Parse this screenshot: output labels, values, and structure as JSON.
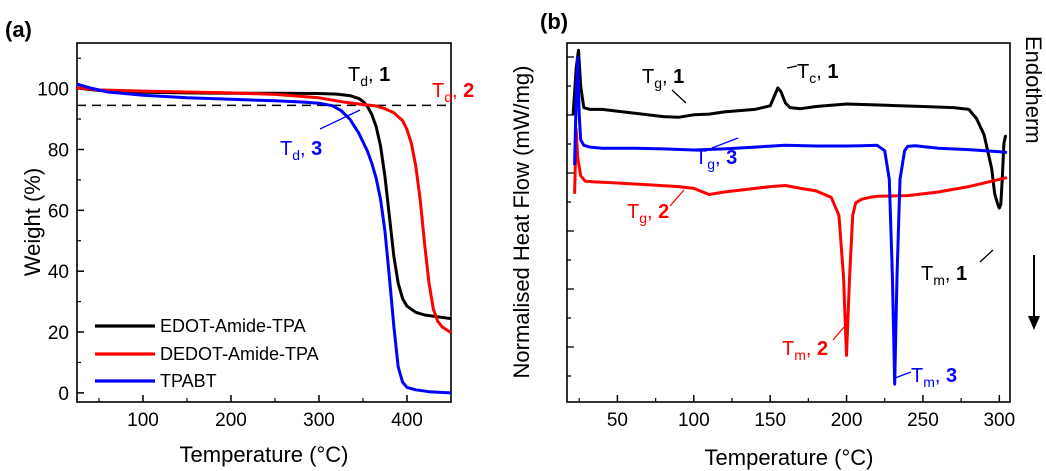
{
  "panels": [
    {
      "panel_label": "(a)",
      "chart_data": {
        "type": "line",
        "xlabel": "Temperature (°C)",
        "ylabel": "Weight (%)",
        "xlim": [
          25,
          450
        ],
        "ylim": [
          -3,
          115
        ],
        "xticks": [
          100,
          200,
          300,
          400
        ],
        "yticks": [
          0,
          20,
          40,
          60,
          80,
          100
        ],
        "hline": 94.5,
        "legend_position": "bottom-left",
        "series": [
          {
            "name": "EDOT-Amide-TPA",
            "color": "#000000",
            "x": [
              25,
              50,
              100,
              150,
              200,
              250,
              300,
              320,
              335,
              345,
              350,
              355,
              360,
              365,
              370,
              375,
              380,
              385,
              390,
              395,
              400,
              410,
              420,
              435,
              450
            ],
            "y": [
              100.2,
              99.4,
              98.8,
              98.6,
              98.5,
              98.5,
              98.4,
              98.2,
              97.7,
              96.8,
              95.8,
              94.2,
              91.5,
              87.5,
              81,
              71,
              58,
              45,
              36,
              31,
              28.5,
              26.5,
              25.6,
              25,
              24.4
            ]
          },
          {
            "name": "DEDOT-Amide-TPA",
            "color": "#ff0000",
            "x": [
              25,
              50,
              100,
              150,
              200,
              250,
              300,
              330,
              350,
              365,
              375,
              385,
              395,
              400,
              405,
              410,
              415,
              420,
              425,
              430,
              435,
              440,
              445,
              450
            ],
            "y": [
              100.3,
              99.6,
              99.2,
              98.9,
              98.6,
              98.1,
              97,
              95.5,
              94.8,
              94.3,
              93.4,
              92.1,
              89.5,
              86.5,
              82,
              74.5,
              63.5,
              49,
              36,
              27.5,
              23.5,
              21.7,
              20.7,
              19.8
            ]
          },
          {
            "name": "TPABT",
            "color": "#0000ff",
            "x": [
              25,
              40,
              60,
              100,
              150,
              200,
              250,
              280,
              300,
              315,
              325,
              335,
              345,
              355,
              360,
              365,
              370,
              375,
              380,
              385,
              390,
              395,
              400,
              410,
              425,
              450
            ],
            "y": [
              101.5,
              100.2,
              98.9,
              97.8,
              97,
              96.5,
              96,
              95.6,
              95.2,
              94.4,
              92.8,
              90,
              85.5,
              79.5,
              75.5,
              70.5,
              63.5,
              53,
              38,
              22,
              8.5,
              3.5,
              1.8,
              1,
              0.4,
              0
            ]
          }
        ],
        "annotations": [
          {
            "sym": "T",
            "sub": "d",
            "num": "1",
            "color": "#000000"
          },
          {
            "sym": "T",
            "sub": "d",
            "num": "2",
            "color": "#ff0000"
          },
          {
            "sym": "T",
            "sub": "d",
            "num": "3",
            "color": "#0000ff"
          }
        ]
      }
    },
    {
      "panel_label": "(b)",
      "chart_data": {
        "type": "line",
        "xlabel": "Temperature (°C)",
        "ylabel": "Normalised Heat Flow (mW/mg)",
        "side_label": "Endotherm",
        "xlim": [
          17,
          307
        ],
        "ylim": [
          0,
          100
        ],
        "xticks": [
          50,
          100,
          150,
          200,
          250,
          300
        ],
        "yticks": [],
        "series": [
          {
            "name": "1",
            "color": "#000000",
            "x": [
              21,
              23,
              24.5,
              26,
              28,
              32,
              40,
              60,
              80,
              90,
              100,
              110,
              120,
              140,
              150,
              153,
              155,
              157,
              160,
              163,
              170,
              180,
              200,
              230,
              250,
              270,
              280,
              285,
              290,
              295,
              297,
              299,
              300,
              301,
              302,
              303,
              304,
              305
            ],
            "y": [
              80,
              93,
              98,
              88,
              82,
              81.5,
              81.5,
              80.5,
              79.5,
              79.3,
              80,
              80.2,
              80.8,
              81.5,
              82.5,
              85.5,
              87.5,
              86.5,
              83.3,
              82,
              81.7,
              82.3,
              83,
              82.6,
              82.3,
              82,
              81.5,
              79,
              74.5,
              65,
              58,
              55,
              54,
              55,
              63,
              72,
              74,
              74
            ]
          },
          {
            "name": "2",
            "color": "#ff0000",
            "x": [
              22,
              23,
              24,
              26,
              29,
              35,
              50,
              70,
              90,
              100,
              110,
              120,
              150,
              160,
              170,
              180,
              190,
              195,
              198,
              200,
              202,
              204,
              206,
              210,
              215,
              220,
              240,
              260,
              280,
              300,
              305
            ],
            "y": [
              58,
              76,
              68,
              63,
              61.5,
              61.3,
              61,
              60.5,
              60,
              59.5,
              57.8,
              58.5,
              60,
              60.3,
              59.5,
              58.8,
              57,
              52,
              35,
              13,
              35,
              52,
              55.5,
              56.5,
              57,
              57.3,
              57.5,
              58.5,
              60,
              62,
              62.5
            ]
          },
          {
            "name": "3",
            "color": "#0000ff",
            "x": [
              22,
              23,
              24,
              25,
              26,
              28,
              32,
              40,
              60,
              80,
              100,
              120,
              140,
              160,
              180,
              200,
              210,
              220,
              225,
              228,
              230,
              231.5,
              233,
              235,
              238,
              240,
              245,
              260,
              280,
              300,
              305
            ],
            "y": [
              66,
              85,
              96,
              80,
              73,
              71.5,
              71,
              70.7,
              70.7,
              70.5,
              70.2,
              70.5,
              71,
              71.5,
              71.3,
              71.3,
              71.4,
              71.5,
              70,
              62,
              35,
              5,
              35,
              62,
              70,
              71.2,
              71.4,
              70.7,
              70.3,
              69.7,
              69.5
            ]
          }
        ],
        "annotations": [
          {
            "sym": "T",
            "sub": "g",
            "num": "1",
            "color": "#000000"
          },
          {
            "sym": "T",
            "sub": "c",
            "num": "1",
            "color": "#000000"
          },
          {
            "sym": "T",
            "sub": "m",
            "num": "1",
            "color": "#000000"
          },
          {
            "sym": "T",
            "sub": "g",
            "num": "3",
            "color": "#0000ff"
          },
          {
            "sym": "T",
            "sub": "g",
            "num": "2",
            "color": "#ff0000"
          },
          {
            "sym": "T",
            "sub": "m",
            "num": "2",
            "color": "#ff0000"
          },
          {
            "sym": "T",
            "sub": "m",
            "num": "3",
            "color": "#0000ff"
          }
        ]
      }
    }
  ]
}
